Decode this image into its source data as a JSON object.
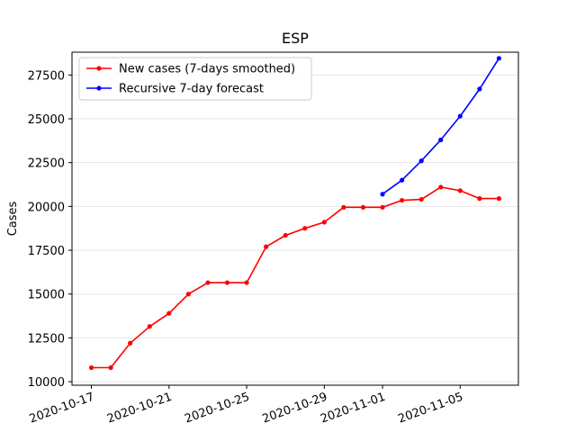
{
  "chart_data": {
    "type": "line",
    "title": "ESP",
    "xlabel": "",
    "ylabel": "Cases",
    "ylim": [
      9800,
      28800
    ],
    "xlim": [
      "2020-10-16",
      "2020-11-08"
    ],
    "grid": "horizontal",
    "legend_position": "top-left",
    "y_ticks": [
      10000,
      12500,
      15000,
      17500,
      20000,
      22500,
      25000,
      27500
    ],
    "y_tick_labels": [
      "10000",
      "12500",
      "15000",
      "17500",
      "20000",
      "22500",
      "25000",
      "27500"
    ],
    "x_ticks": [
      "2020-10-17",
      "2020-10-21",
      "2020-10-25",
      "2020-10-29",
      "2020-11-01",
      "2020-11-05"
    ],
    "series": [
      {
        "name": "New cases (7-days smoothed)",
        "color": "#ff0000",
        "x": [
          "2020-10-17",
          "2020-10-18",
          "2020-10-19",
          "2020-10-20",
          "2020-10-21",
          "2020-10-22",
          "2020-10-23",
          "2020-10-24",
          "2020-10-25",
          "2020-10-26",
          "2020-10-27",
          "2020-10-28",
          "2020-10-29",
          "2020-10-30",
          "2020-10-31",
          "2020-11-01",
          "2020-11-02",
          "2020-11-03",
          "2020-11-04",
          "2020-11-05",
          "2020-11-06",
          "2020-11-07"
        ],
        "values": [
          10800,
          10800,
          12200,
          13150,
          13900,
          15000,
          15650,
          15650,
          15650,
          17700,
          18350,
          18750,
          19100,
          19950,
          19950,
          19950,
          20350,
          20400,
          21100,
          20900,
          20450,
          20450
        ]
      },
      {
        "name": "Recursive 7-day forecast",
        "color": "#0000ff",
        "x": [
          "2020-11-01",
          "2020-11-02",
          "2020-11-03",
          "2020-11-04",
          "2020-11-05",
          "2020-11-06",
          "2020-11-07"
        ],
        "values": [
          20700,
          21500,
          22600,
          23800,
          25150,
          26700,
          28450
        ]
      }
    ]
  }
}
